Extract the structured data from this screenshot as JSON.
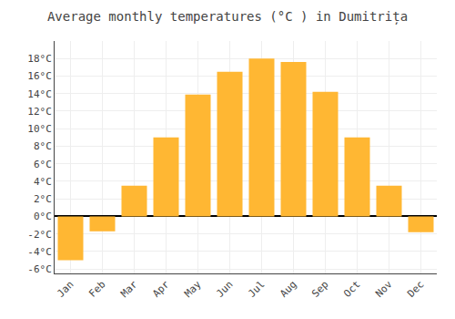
{
  "chart_data": {
    "type": "bar",
    "title": "Average monthly temperatures (°C ) in Dumitrița",
    "categories": [
      "Jan",
      "Feb",
      "Mar",
      "Apr",
      "May",
      "Jun",
      "Jul",
      "Aug",
      "Sep",
      "Oct",
      "Nov",
      "Dec"
    ],
    "values": [
      -5.0,
      -1.7,
      3.5,
      9.0,
      13.9,
      16.5,
      18.0,
      17.6,
      14.2,
      9.0,
      3.5,
      -1.8
    ],
    "color": "#FFB733",
    "ylim": [
      -6.5,
      20
    ],
    "yticks": [
      {
        "value": -6,
        "label": "-6°C"
      },
      {
        "value": -4,
        "label": "-4°C"
      },
      {
        "value": -2,
        "label": "-2°C"
      },
      {
        "value": 0,
        "label": "0°C"
      },
      {
        "value": 2,
        "label": "2°C"
      },
      {
        "value": 4,
        "label": "4°C"
      },
      {
        "value": 6,
        "label": "6°C"
      },
      {
        "value": 8,
        "label": "8°C"
      },
      {
        "value": 10,
        "label": "10°C"
      },
      {
        "value": 12,
        "label": "12°C"
      },
      {
        "value": 14,
        "label": "14°C"
      },
      {
        "value": 16,
        "label": "16°C"
      },
      {
        "value": 18,
        "label": "18°C"
      }
    ],
    "grid": true
  }
}
